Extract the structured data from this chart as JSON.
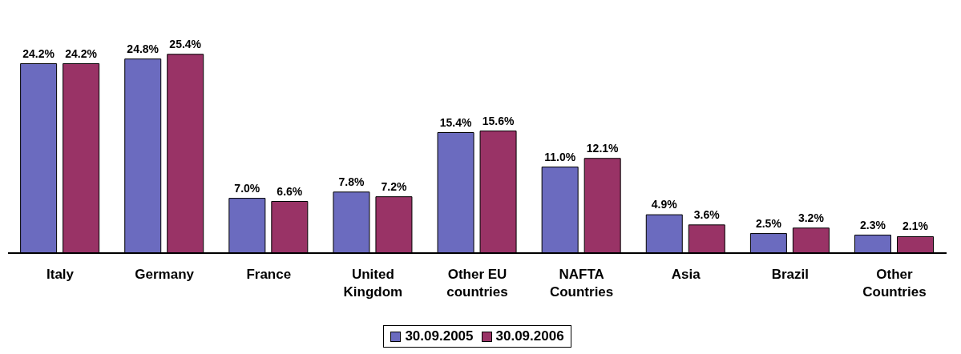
{
  "chart_data": {
    "type": "bar",
    "categories": [
      "Italy",
      "Germany",
      "France",
      "United Kingdom",
      "Other EU countries",
      "NAFTA Countries",
      "Asia",
      "Brazil",
      "Other Countries"
    ],
    "series": [
      {
        "name": "30.09.2005",
        "color": "#6b6bbf",
        "values": [
          24.2,
          24.8,
          7.0,
          7.8,
          15.4,
          11.0,
          4.9,
          2.5,
          2.3
        ],
        "value_labels": [
          "24.2%",
          "24.8%",
          "7.0%",
          "7.8%",
          "15.4%",
          "11.0%",
          "4.9%",
          "2.5%",
          "2.3%"
        ]
      },
      {
        "name": "30.09.2006",
        "color": "#993366",
        "values": [
          24.2,
          25.4,
          6.6,
          7.2,
          15.6,
          12.1,
          3.6,
          3.2,
          2.1
        ],
        "value_labels": [
          "24.2%",
          "25.4%",
          "6.6%",
          "7.2%",
          "15.6%",
          "12.1%",
          "3.6%",
          "3.2%",
          "2.1%"
        ]
      }
    ],
    "legend": "bottom"
  }
}
